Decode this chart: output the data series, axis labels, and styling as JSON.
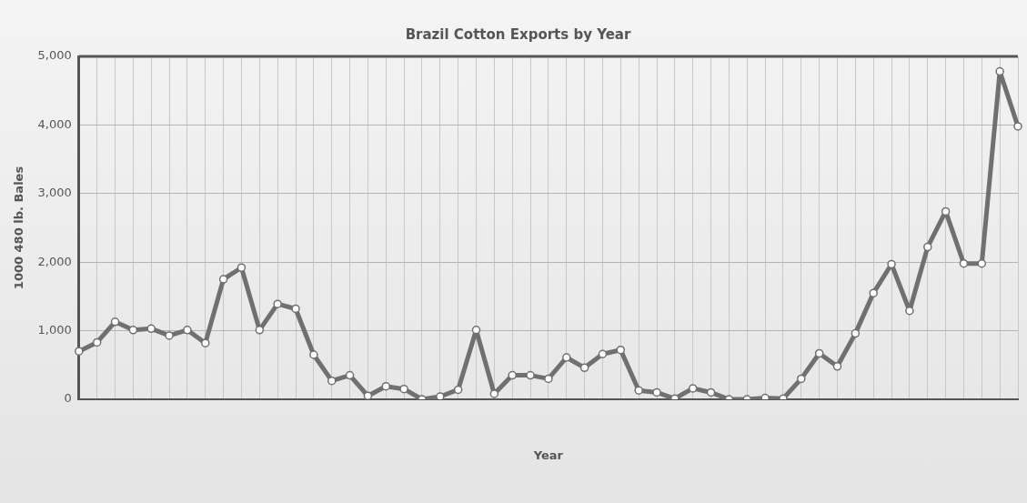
{
  "chart_data": {
    "type": "line",
    "title": "Brazil Cotton Exports by Year",
    "xlabel": "Year",
    "ylabel": "1000 480 lb. Bales",
    "categories": [
      null,
      null,
      null,
      null,
      null,
      null,
      null,
      null,
      null,
      null,
      null,
      null,
      null,
      null,
      null,
      null,
      null,
      null,
      null,
      null,
      null,
      null,
      null,
      null,
      null,
      null,
      null,
      null,
      null,
      null,
      null,
      null,
      null,
      null,
      null,
      null,
      null,
      null,
      null,
      null,
      null,
      null,
      null,
      null,
      null,
      null,
      null,
      null,
      null,
      null,
      null,
      null,
      null
    ],
    "series": [
      {
        "color": "#707070",
        "values": [
          700,
          830,
          1130,
          1010,
          1030,
          930,
          1010,
          820,
          1750,
          1920,
          1010,
          1390,
          1320,
          650,
          270,
          350,
          50,
          190,
          150,
          0,
          40,
          140,
          1010,
          80,
          350,
          350,
          300,
          610,
          460,
          660,
          720,
          130,
          100,
          10,
          160,
          100,
          0,
          0,
          20,
          10,
          300,
          670,
          480,
          960,
          1550,
          1970,
          1290,
          2220,
          2740,
          1980,
          1980,
          4780,
          3980
        ]
      }
    ],
    "ylim": [
      0,
      5000
    ],
    "yticks": [
      0,
      {
        "value": 1000,
        "label": "1,000"
      },
      {
        "value": 2000,
        "label": "2,000"
      },
      {
        "value": 3000,
        "label": "3,000"
      },
      {
        "value": 4000,
        "label": "4,000"
      },
      {
        "value": 5000,
        "label": "5,000"
      }
    ],
    "grid": true,
    "legend": false,
    "marker": "circle",
    "line_style": "solid"
  }
}
